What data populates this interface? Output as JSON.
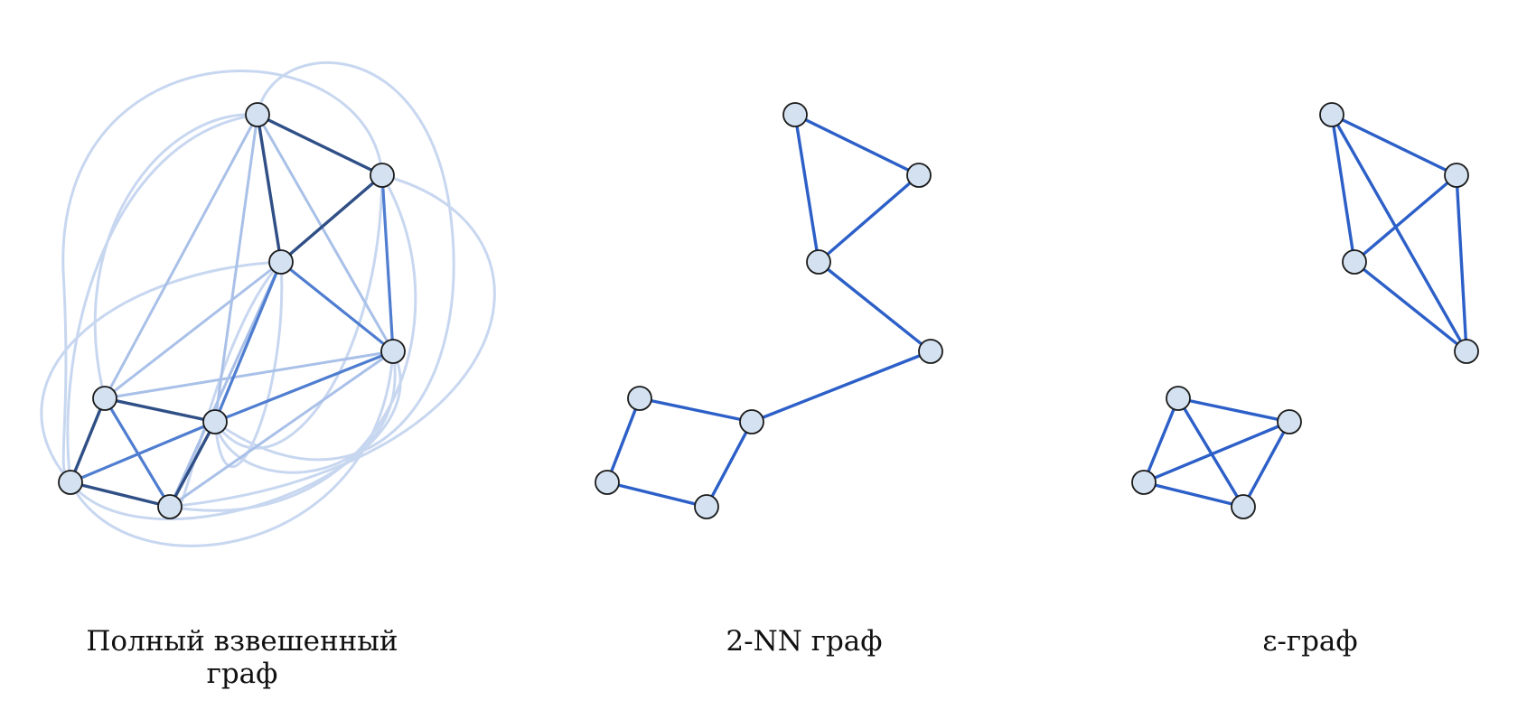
{
  "colors": {
    "node_fill": "#d3e1f0",
    "node_stroke": "#1a1a1a",
    "edge_strong": "#2f4f86",
    "edge_medium": "#4f7dd0",
    "edge_light": "#a9c0e8",
    "edge_faint": "#c8d7f0",
    "edge_plain": "#2c5fc8"
  },
  "panels": [
    {
      "id": "full",
      "caption": "Полный взвешенный граф",
      "nodes": 8,
      "edge_weights": [
        "strong",
        "medium",
        "light",
        "faint"
      ]
    },
    {
      "id": "knn",
      "caption": "2-NN граф",
      "nodes": 8
    },
    {
      "id": "eps",
      "caption": "ε-граф",
      "nodes": 8
    }
  ]
}
